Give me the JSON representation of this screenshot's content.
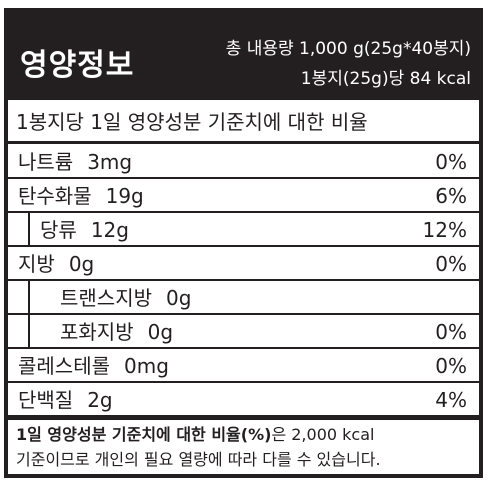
{
  "header": {
    "title": "영양정보",
    "total_content": "총 내용량 1,000 g(25g*40봉지)",
    "per_serving": "1봉지(25g)당 84 kcal"
  },
  "reference_header": "1봉지당 1일 영양성분 기준치에 대한 비율",
  "nutrients": [
    {
      "name": "나트륨",
      "amount": "3mg",
      "percent": "0%"
    },
    {
      "name": "탄수화물",
      "amount": "19g",
      "percent": "6%"
    },
    {
      "name": "당류",
      "amount": "12g",
      "percent": "12%"
    },
    {
      "name": "지방",
      "amount": "0g",
      "percent": "0%"
    },
    {
      "name": "트랜스지방",
      "amount": "0g",
      "percent": ""
    },
    {
      "name": "포화지방",
      "amount": "0g",
      "percent": "0%"
    },
    {
      "name": "콜레스테롤",
      "amount": "0mg",
      "percent": "0%"
    },
    {
      "name": "단백질",
      "amount": "2g",
      "percent": "4%"
    }
  ],
  "footer": {
    "bold_part": "1일 영양성분 기준치에 대한 비율(%)",
    "line1_rest": "은 2,000 kcal",
    "line2": "기준이므로 개인의 필요 열량에 따라 다를 수 있습니다."
  },
  "colors": {
    "ink": "#231f20",
    "background": "#ffffff"
  }
}
